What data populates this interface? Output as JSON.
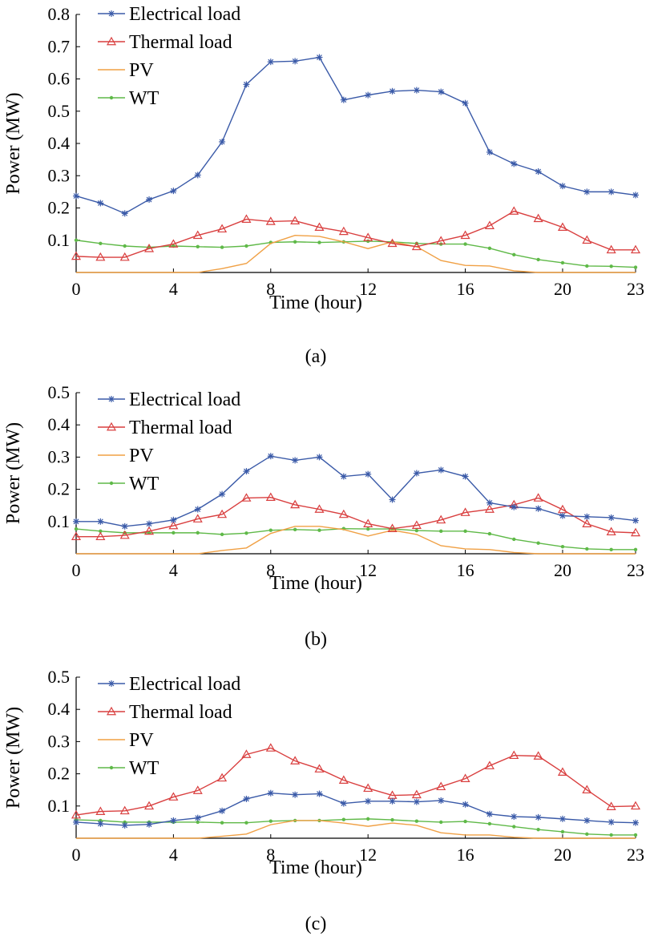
{
  "chart_data": [
    {
      "type": "line",
      "caption": "(a)",
      "xlabel": "Time (hour)",
      "ylabel": "Power (MW)",
      "xlim": [
        0,
        23
      ],
      "ylim": [
        0,
        0.8
      ],
      "xticks": [
        "0",
        "4",
        "8",
        "12",
        "16",
        "20",
        "23"
      ],
      "yticks": [
        "0.1",
        "0.2",
        "0.3",
        "0.4",
        "0.5",
        "0.6",
        "0.7",
        "0.8"
      ],
      "legend_position": "top-left",
      "x": [
        0,
        1,
        2,
        3,
        4,
        5,
        6,
        7,
        8,
        9,
        10,
        11,
        12,
        13,
        14,
        15,
        16,
        17,
        18,
        19,
        20,
        21,
        22,
        23
      ],
      "series": [
        {
          "name": "Electrical load",
          "color": "#3a5aa8",
          "marker": "star",
          "values": [
            0.237,
            0.215,
            0.183,
            0.226,
            0.253,
            0.302,
            0.405,
            0.583,
            0.653,
            0.655,
            0.667,
            0.535,
            0.55,
            0.562,
            0.565,
            0.56,
            0.525,
            0.373,
            0.337,
            0.313,
            0.268,
            0.25,
            0.25,
            0.24
          ]
        },
        {
          "name": "Thermal load",
          "color": "#d93f3f",
          "marker": "triangle",
          "values": [
            0.05,
            0.047,
            0.047,
            0.074,
            0.088,
            0.115,
            0.135,
            0.165,
            0.158,
            0.16,
            0.14,
            0.127,
            0.108,
            0.09,
            0.08,
            0.098,
            0.115,
            0.145,
            0.19,
            0.167,
            0.14,
            0.1,
            0.07,
            0.07
          ]
        },
        {
          "name": "PV",
          "color": "#f0a044",
          "marker": "none",
          "values": [
            0,
            0,
            0,
            0,
            0,
            0,
            0.012,
            0.028,
            0.09,
            0.115,
            0.112,
            0.095,
            0.074,
            0.095,
            0.08,
            0.037,
            0.022,
            0.02,
            0.005,
            0,
            0,
            0,
            0,
            0
          ]
        },
        {
          "name": "WT",
          "color": "#5fb948",
          "marker": "dot",
          "values": [
            0.1,
            0.09,
            0.082,
            0.078,
            0.082,
            0.08,
            0.078,
            0.082,
            0.093,
            0.095,
            0.093,
            0.095,
            0.097,
            0.095,
            0.09,
            0.088,
            0.088,
            0.075,
            0.055,
            0.04,
            0.03,
            0.02,
            0.019,
            0.016
          ]
        }
      ]
    },
    {
      "type": "line",
      "caption": "(b)",
      "xlabel": "Time (hour)",
      "ylabel": "Power (MW)",
      "xlim": [
        0,
        23
      ],
      "ylim": [
        0,
        0.5
      ],
      "xticks": [
        "0",
        "4",
        "8",
        "12",
        "16",
        "20",
        "23"
      ],
      "yticks": [
        "0.1",
        "0.2",
        "0.3",
        "0.4",
        "0.5"
      ],
      "legend_position": "top-left",
      "x": [
        0,
        1,
        2,
        3,
        4,
        5,
        6,
        7,
        8,
        9,
        10,
        11,
        12,
        13,
        14,
        15,
        16,
        17,
        18,
        19,
        20,
        21,
        22,
        23
      ],
      "series": [
        {
          "name": "Electrical load",
          "color": "#3a5aa8",
          "marker": "star",
          "values": [
            0.1,
            0.1,
            0.085,
            0.093,
            0.105,
            0.138,
            0.185,
            0.256,
            0.303,
            0.29,
            0.3,
            0.24,
            0.247,
            0.168,
            0.25,
            0.26,
            0.24,
            0.158,
            0.145,
            0.14,
            0.118,
            0.115,
            0.112,
            0.103
          ]
        },
        {
          "name": "Thermal load",
          "color": "#d93f3f",
          "marker": "triangle",
          "values": [
            0.053,
            0.053,
            0.057,
            0.07,
            0.087,
            0.108,
            0.122,
            0.173,
            0.175,
            0.152,
            0.138,
            0.122,
            0.093,
            0.078,
            0.088,
            0.105,
            0.128,
            0.138,
            0.152,
            0.173,
            0.137,
            0.093,
            0.068,
            0.065
          ]
        },
        {
          "name": "PV",
          "color": "#f0a044",
          "marker": "none",
          "values": [
            0,
            0,
            0,
            0,
            0,
            0,
            0.01,
            0.018,
            0.063,
            0.085,
            0.085,
            0.075,
            0.055,
            0.073,
            0.06,
            0.025,
            0.015,
            0.013,
            0.004,
            0,
            0,
            0,
            0,
            0
          ]
        },
        {
          "name": "WT",
          "color": "#5fb948",
          "marker": "dot",
          "values": [
            0.077,
            0.07,
            0.065,
            0.065,
            0.065,
            0.065,
            0.06,
            0.064,
            0.073,
            0.075,
            0.073,
            0.078,
            0.077,
            0.077,
            0.072,
            0.07,
            0.07,
            0.062,
            0.045,
            0.033,
            0.022,
            0.015,
            0.013,
            0.013
          ]
        }
      ]
    },
    {
      "type": "line",
      "caption": "(c)",
      "xlabel": "Time (hour)",
      "ylabel": "Power (MW)",
      "xlim": [
        0,
        23
      ],
      "ylim": [
        0,
        0.5
      ],
      "xticks": [
        "0",
        "4",
        "8",
        "12",
        "16",
        "20",
        "23"
      ],
      "yticks": [
        "0.1",
        "0.2",
        "0.3",
        "0.4",
        "0.5"
      ],
      "legend_position": "top-left",
      "x": [
        0,
        1,
        2,
        3,
        4,
        5,
        6,
        7,
        8,
        9,
        10,
        11,
        12,
        13,
        14,
        15,
        16,
        17,
        18,
        19,
        20,
        21,
        22,
        23
      ],
      "series": [
        {
          "name": "Electrical load",
          "color": "#3a5aa8",
          "marker": "star",
          "values": [
            0.05,
            0.045,
            0.04,
            0.043,
            0.055,
            0.063,
            0.085,
            0.122,
            0.14,
            0.135,
            0.138,
            0.108,
            0.115,
            0.115,
            0.113,
            0.117,
            0.105,
            0.075,
            0.067,
            0.065,
            0.06,
            0.055,
            0.05,
            0.048
          ]
        },
        {
          "name": "Thermal load",
          "color": "#d93f3f",
          "marker": "triangle",
          "values": [
            0.072,
            0.083,
            0.085,
            0.1,
            0.128,
            0.148,
            0.187,
            0.26,
            0.28,
            0.24,
            0.215,
            0.18,
            0.155,
            0.133,
            0.135,
            0.16,
            0.185,
            0.225,
            0.257,
            0.255,
            0.205,
            0.15,
            0.098,
            0.1
          ]
        },
        {
          "name": "PV",
          "color": "#f0a044",
          "marker": "none",
          "values": [
            0,
            0,
            0,
            0,
            0,
            0,
            0.006,
            0.013,
            0.042,
            0.055,
            0.055,
            0.047,
            0.037,
            0.047,
            0.04,
            0.017,
            0.01,
            0.01,
            0.003,
            0,
            0,
            0,
            0,
            0
          ]
        },
        {
          "name": "WT",
          "color": "#5fb948",
          "marker": "dot",
          "values": [
            0.057,
            0.055,
            0.05,
            0.05,
            0.05,
            0.05,
            0.048,
            0.048,
            0.053,
            0.055,
            0.055,
            0.058,
            0.06,
            0.057,
            0.053,
            0.05,
            0.052,
            0.045,
            0.036,
            0.027,
            0.02,
            0.013,
            0.01,
            0.01
          ]
        }
      ]
    }
  ]
}
